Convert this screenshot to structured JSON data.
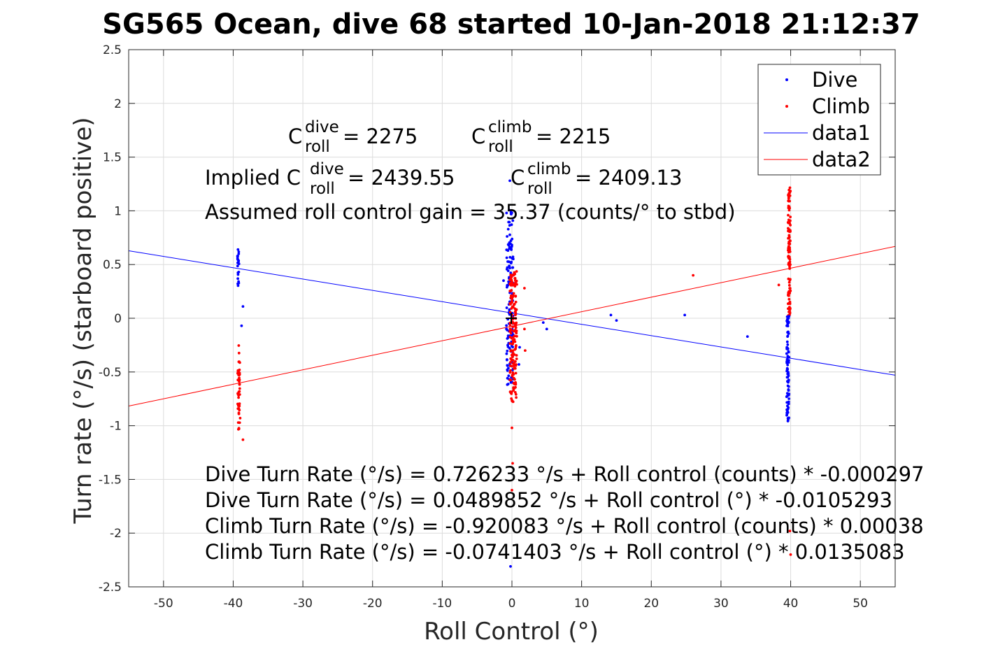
{
  "chart_data": {
    "type": "scatter",
    "title": "SG565 Ocean, dive 68 started 10-Jan-2018 21:12:37",
    "xlabel": "Roll Control (°)",
    "ylabel": "Turn rate (°/s) (starboard positive)",
    "xlim": [
      -55,
      55
    ],
    "ylim": [
      -2.5,
      2.5
    ],
    "xticks": [
      -50,
      -40,
      -30,
      -20,
      -10,
      0,
      10,
      20,
      30,
      40,
      50
    ],
    "yticks": [
      -2.5,
      -2,
      -1.5,
      -1,
      -0.5,
      0,
      0.5,
      1,
      1.5,
      2,
      2.5
    ],
    "grid": true,
    "legend_position": "top-right",
    "colors": {
      "dive": "#0000ff",
      "climb": "#ff0000",
      "axis": "#262626"
    },
    "legend": [
      {
        "label": "Dive",
        "marker": "point",
        "color": "#0000ff"
      },
      {
        "label": "Climb",
        "marker": "point",
        "color": "#ff0000"
      },
      {
        "label": "data1",
        "marker": "line",
        "color": "#0000ff"
      },
      {
        "label": "data2",
        "marker": "line",
        "color": "#ff0000"
      }
    ],
    "lines": [
      {
        "name": "data1",
        "color": "#0000ff",
        "intercept": 0.0489852,
        "slope": -0.0105293
      },
      {
        "name": "data2",
        "color": "#ff0000",
        "intercept": -0.0741403,
        "slope": 0.0135083
      }
    ],
    "clusters": [
      {
        "series": "Dive",
        "x": -39.3,
        "yMin": 0.26,
        "yMax": 0.65,
        "n": 22,
        "spread": 0.25
      },
      {
        "series": "Climb",
        "x": -39.2,
        "yMin": -1.04,
        "yMax": -0.25,
        "n": 45,
        "spread": 0.3
      },
      {
        "series": "Dive",
        "x": -0.3,
        "yMin": -0.64,
        "yMax": 1.02,
        "n": 130,
        "spread": 1.0
      },
      {
        "series": "Climb",
        "x": 0.2,
        "yMin": -0.78,
        "yMax": 0.45,
        "n": 180,
        "spread": 1.0
      },
      {
        "series": "Climb",
        "x": 39.8,
        "yMin": 0.0,
        "yMax": 1.22,
        "n": 110,
        "spread": 0.35
      },
      {
        "series": "Dive",
        "x": 39.6,
        "yMin": -0.96,
        "yMax": 0.05,
        "n": 95,
        "spread": 0.35
      }
    ],
    "points": [
      {
        "series": "Dive",
        "x": -38.6,
        "y": 0.11
      },
      {
        "series": "Dive",
        "x": -38.8,
        "y": -0.07
      },
      {
        "series": "Climb",
        "x": -38.6,
        "y": -1.13
      },
      {
        "series": "Climb",
        "x": -39.0,
        "y": -0.93
      },
      {
        "series": "Dive",
        "x": -0.3,
        "y": 1.28
      },
      {
        "series": "Dive",
        "x": -0.2,
        "y": -2.31
      },
      {
        "series": "Dive",
        "x": -1.2,
        "y": 0.35
      },
      {
        "series": "Dive",
        "x": 1.0,
        "y": -0.43
      },
      {
        "series": "Dive",
        "x": 1.1,
        "y": -0.27
      },
      {
        "series": "Dive",
        "x": 4.5,
        "y": -0.04
      },
      {
        "series": "Dive",
        "x": 5.0,
        "y": -0.1
      },
      {
        "series": "Dive",
        "x": 14.2,
        "y": 0.03
      },
      {
        "series": "Dive",
        "x": 15.0,
        "y": -0.02
      },
      {
        "series": "Dive",
        "x": 24.8,
        "y": 0.03
      },
      {
        "series": "Dive",
        "x": 33.8,
        "y": -0.17
      },
      {
        "series": "Climb",
        "x": 0.0,
        "y": -1.6
      },
      {
        "series": "Climb",
        "x": 0.1,
        "y": -1.35
      },
      {
        "series": "Climb",
        "x": 0.0,
        "y": -1.02
      },
      {
        "series": "Climb",
        "x": 1.8,
        "y": 0.28
      },
      {
        "series": "Climb",
        "x": 1.8,
        "y": -0.1
      },
      {
        "series": "Climb",
        "x": 1.9,
        "y": -0.3
      },
      {
        "series": "Climb",
        "x": 26.0,
        "y": 0.4
      },
      {
        "series": "Climb",
        "x": 38.3,
        "y": 0.31
      },
      {
        "series": "Climb",
        "x": 39.9,
        "y": -1.98
      },
      {
        "series": "Climb",
        "x": 40.0,
        "y": -2.2
      }
    ],
    "annotations": {
      "c_roll_dive_label": "C",
      "c_roll_dive_sup": "dive",
      "c_roll_dive_sub": "roll",
      "c_roll_dive_value": " = 2275",
      "c_roll_climb_label": "C",
      "c_roll_climb_sup": "climb",
      "c_roll_climb_sub": "roll",
      "c_roll_climb_value": " = 2215",
      "implied_prefix": "Implied C",
      "implied_dive_sup": "dive",
      "implied_dive_sub": "roll",
      "implied_dive_value": " = 2439.55",
      "implied_climb_label": "C",
      "implied_climb_sup": "climb",
      "implied_climb_sub": "roll",
      "implied_climb_value": " = 2409.13",
      "gain": "Assumed roll control gain = 35.37 (counts/° to stbd)",
      "fit_lines": [
        "Dive Turn Rate (°/s) = 0.726233 °/s + Roll control (counts) * -0.000297",
        "Dive Turn Rate (°/s) = 0.0489852 °/s + Roll control (°) * -0.0105293",
        "Climb Turn Rate (°/s) = -0.920083 °/s + Roll control (counts) * 0.00038",
        "Climb Turn Rate (°/s) = -0.0741403 °/s + Roll control (°) * 0.0135083"
      ]
    }
  }
}
